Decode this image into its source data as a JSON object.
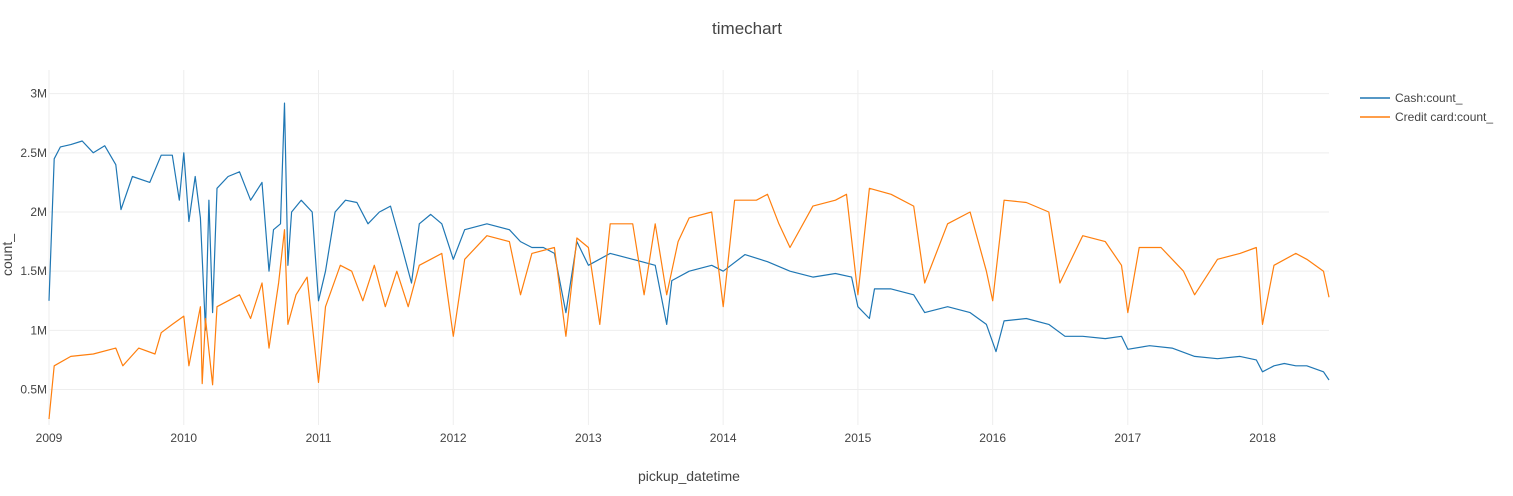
{
  "chart_data": {
    "type": "line",
    "title": "timechart",
    "xlabel": "pickup_datetime",
    "ylabel": "count_",
    "x_range": [
      "2009-01-01",
      "2018-06-30"
    ],
    "ylim": [
      200000,
      3200000
    ],
    "x_ticks": [
      "2009",
      "2010",
      "2011",
      "2012",
      "2013",
      "2014",
      "2015",
      "2016",
      "2017",
      "2018"
    ],
    "y_ticks": [
      {
        "value": 500000,
        "label": "0.5M"
      },
      {
        "value": 1000000,
        "label": "1M"
      },
      {
        "value": 1500000,
        "label": "1.5M"
      },
      {
        "value": 2000000,
        "label": "2M"
      },
      {
        "value": 2500000,
        "label": "2.5M"
      },
      {
        "value": 3000000,
        "label": "3M"
      }
    ],
    "grid": true,
    "legend_position": "top-right",
    "series": [
      {
        "name": "Cash:count_",
        "color": "#1f77b4",
        "points": [
          [
            "2009-01-01",
            1250000
          ],
          [
            "2009-01-15",
            2450000
          ],
          [
            "2009-02-01",
            2550000
          ],
          [
            "2009-03-01",
            2570000
          ],
          [
            "2009-04-01",
            2600000
          ],
          [
            "2009-05-01",
            2500000
          ],
          [
            "2009-06-01",
            2560000
          ],
          [
            "2009-07-01",
            2400000
          ],
          [
            "2009-07-15",
            2020000
          ],
          [
            "2009-08-15",
            2300000
          ],
          [
            "2009-10-01",
            2250000
          ],
          [
            "2009-11-01",
            2480000
          ],
          [
            "2009-12-01",
            2480000
          ],
          [
            "2009-12-20",
            2100000
          ],
          [
            "2010-01-01",
            2500000
          ],
          [
            "2010-01-15",
            1920000
          ],
          [
            "2010-02-01",
            2300000
          ],
          [
            "2010-02-15",
            1950000
          ],
          [
            "2010-03-01",
            1000000
          ],
          [
            "2010-03-10",
            2100000
          ],
          [
            "2010-03-20",
            1150000
          ],
          [
            "2010-04-01",
            2200000
          ],
          [
            "2010-05-01",
            2300000
          ],
          [
            "2010-06-01",
            2340000
          ],
          [
            "2010-07-01",
            2100000
          ],
          [
            "2010-08-01",
            2250000
          ],
          [
            "2010-08-20",
            1500000
          ],
          [
            "2010-09-01",
            1850000
          ],
          [
            "2010-09-20",
            1900000
          ],
          [
            "2010-10-01",
            2920000
          ],
          [
            "2010-10-10",
            1550000
          ],
          [
            "2010-10-20",
            2000000
          ],
          [
            "2010-11-15",
            2100000
          ],
          [
            "2010-12-15",
            2000000
          ],
          [
            "2011-01-01",
            1250000
          ],
          [
            "2011-01-20",
            1500000
          ],
          [
            "2011-02-15",
            2000000
          ],
          [
            "2011-03-15",
            2100000
          ],
          [
            "2011-04-15",
            2080000
          ],
          [
            "2011-05-15",
            1900000
          ],
          [
            "2011-06-15",
            2000000
          ],
          [
            "2011-07-15",
            2050000
          ],
          [
            "2011-08-15",
            1700000
          ],
          [
            "2011-09-10",
            1400000
          ],
          [
            "2011-10-01",
            1900000
          ],
          [
            "2011-11-01",
            1980000
          ],
          [
            "2011-12-01",
            1900000
          ],
          [
            "2012-01-01",
            1600000
          ],
          [
            "2012-02-01",
            1850000
          ],
          [
            "2012-04-01",
            1900000
          ],
          [
            "2012-06-01",
            1850000
          ],
          [
            "2012-07-01",
            1750000
          ],
          [
            "2012-08-01",
            1700000
          ],
          [
            "2012-09-01",
            1700000
          ],
          [
            "2012-10-01",
            1650000
          ],
          [
            "2012-11-01",
            1150000
          ],
          [
            "2012-12-01",
            1750000
          ],
          [
            "2013-01-01",
            1550000
          ],
          [
            "2013-03-01",
            1650000
          ],
          [
            "2013-05-01",
            1600000
          ],
          [
            "2013-07-01",
            1550000
          ],
          [
            "2013-08-01",
            1050000
          ],
          [
            "2013-08-15",
            1420000
          ],
          [
            "2013-10-01",
            1500000
          ],
          [
            "2013-12-01",
            1550000
          ],
          [
            "2014-01-01",
            1500000
          ],
          [
            "2014-03-01",
            1640000
          ],
          [
            "2014-05-01",
            1580000
          ],
          [
            "2014-07-01",
            1500000
          ],
          [
            "2014-09-01",
            1450000
          ],
          [
            "2014-11-01",
            1480000
          ],
          [
            "2014-12-15",
            1450000
          ],
          [
            "2015-01-01",
            1200000
          ],
          [
            "2015-02-01",
            1100000
          ],
          [
            "2015-02-15",
            1350000
          ],
          [
            "2015-04-01",
            1350000
          ],
          [
            "2015-06-01",
            1300000
          ],
          [
            "2015-07-01",
            1150000
          ],
          [
            "2015-09-01",
            1200000
          ],
          [
            "2015-11-01",
            1150000
          ],
          [
            "2015-12-15",
            1050000
          ],
          [
            "2016-01-10",
            820000
          ],
          [
            "2016-02-01",
            1080000
          ],
          [
            "2016-04-01",
            1100000
          ],
          [
            "2016-06-01",
            1050000
          ],
          [
            "2016-07-15",
            950000
          ],
          [
            "2016-09-01",
            950000
          ],
          [
            "2016-11-01",
            930000
          ],
          [
            "2016-12-15",
            950000
          ],
          [
            "2017-01-01",
            840000
          ],
          [
            "2017-03-01",
            870000
          ],
          [
            "2017-05-01",
            850000
          ],
          [
            "2017-07-01",
            780000
          ],
          [
            "2017-09-01",
            760000
          ],
          [
            "2017-11-01",
            780000
          ],
          [
            "2017-12-15",
            750000
          ],
          [
            "2018-01-01",
            650000
          ],
          [
            "2018-02-01",
            700000
          ],
          [
            "2018-03-01",
            720000
          ],
          [
            "2018-04-01",
            700000
          ],
          [
            "2018-05-01",
            700000
          ],
          [
            "2018-06-15",
            650000
          ],
          [
            "2018-06-30",
            580000
          ]
        ]
      },
      {
        "name": "Credit card:count_",
        "color": "#ff7f0e",
        "points": [
          [
            "2009-01-01",
            250000
          ],
          [
            "2009-01-15",
            700000
          ],
          [
            "2009-03-01",
            780000
          ],
          [
            "2009-05-01",
            800000
          ],
          [
            "2009-07-01",
            850000
          ],
          [
            "2009-07-20",
            700000
          ],
          [
            "2009-09-01",
            850000
          ],
          [
            "2009-10-15",
            800000
          ],
          [
            "2009-11-01",
            980000
          ],
          [
            "2009-12-01",
            1050000
          ],
          [
            "2010-01-01",
            1120000
          ],
          [
            "2010-01-15",
            700000
          ],
          [
            "2010-02-15",
            1200000
          ],
          [
            "2010-02-20",
            550000
          ],
          [
            "2010-03-01",
            1100000
          ],
          [
            "2010-03-20",
            540000
          ],
          [
            "2010-04-01",
            1200000
          ],
          [
            "2010-05-01",
            1250000
          ],
          [
            "2010-06-01",
            1300000
          ],
          [
            "2010-07-01",
            1100000
          ],
          [
            "2010-08-01",
            1400000
          ],
          [
            "2010-08-20",
            850000
          ],
          [
            "2010-09-15",
            1400000
          ],
          [
            "2010-10-01",
            1850000
          ],
          [
            "2010-10-10",
            1050000
          ],
          [
            "2010-11-01",
            1300000
          ],
          [
            "2010-12-01",
            1450000
          ],
          [
            "2011-01-01",
            560000
          ],
          [
            "2011-01-20",
            1200000
          ],
          [
            "2011-03-01",
            1550000
          ],
          [
            "2011-04-01",
            1500000
          ],
          [
            "2011-05-01",
            1250000
          ],
          [
            "2011-06-01",
            1550000
          ],
          [
            "2011-07-01",
            1200000
          ],
          [
            "2011-08-01",
            1500000
          ],
          [
            "2011-09-01",
            1200000
          ],
          [
            "2011-10-01",
            1550000
          ],
          [
            "2011-11-01",
            1600000
          ],
          [
            "2011-12-01",
            1650000
          ],
          [
            "2012-01-01",
            950000
          ],
          [
            "2012-02-01",
            1600000
          ],
          [
            "2012-04-01",
            1800000
          ],
          [
            "2012-06-01",
            1750000
          ],
          [
            "2012-07-01",
            1300000
          ],
          [
            "2012-08-01",
            1650000
          ],
          [
            "2012-10-01",
            1700000
          ],
          [
            "2012-11-01",
            950000
          ],
          [
            "2012-12-01",
            1780000
          ],
          [
            "2013-01-01",
            1700000
          ],
          [
            "2013-02-01",
            1050000
          ],
          [
            "2013-03-01",
            1900000
          ],
          [
            "2013-05-01",
            1900000
          ],
          [
            "2013-06-01",
            1300000
          ],
          [
            "2013-07-01",
            1900000
          ],
          [
            "2013-08-01",
            1300000
          ],
          [
            "2013-09-01",
            1750000
          ],
          [
            "2013-10-01",
            1950000
          ],
          [
            "2013-12-01",
            2000000
          ],
          [
            "2014-01-01",
            1200000
          ],
          [
            "2014-02-01",
            2100000
          ],
          [
            "2014-04-01",
            2100000
          ],
          [
            "2014-05-01",
            2150000
          ],
          [
            "2014-06-01",
            1900000
          ],
          [
            "2014-07-01",
            1700000
          ],
          [
            "2014-09-01",
            2050000
          ],
          [
            "2014-11-01",
            2100000
          ],
          [
            "2014-12-01",
            2150000
          ],
          [
            "2015-01-01",
            1300000
          ],
          [
            "2015-02-01",
            2200000
          ],
          [
            "2015-04-01",
            2150000
          ],
          [
            "2015-06-01",
            2050000
          ],
          [
            "2015-07-01",
            1400000
          ],
          [
            "2015-09-01",
            1900000
          ],
          [
            "2015-11-01",
            2000000
          ],
          [
            "2015-12-15",
            1500000
          ],
          [
            "2016-01-01",
            1250000
          ],
          [
            "2016-02-01",
            2100000
          ],
          [
            "2016-04-01",
            2080000
          ],
          [
            "2016-06-01",
            2000000
          ],
          [
            "2016-07-01",
            1400000
          ],
          [
            "2016-09-01",
            1800000
          ],
          [
            "2016-11-01",
            1750000
          ],
          [
            "2016-12-15",
            1550000
          ],
          [
            "2017-01-01",
            1150000
          ],
          [
            "2017-02-01",
            1700000
          ],
          [
            "2017-04-01",
            1700000
          ],
          [
            "2017-06-01",
            1500000
          ],
          [
            "2017-07-01",
            1300000
          ],
          [
            "2017-09-01",
            1600000
          ],
          [
            "2017-11-01",
            1650000
          ],
          [
            "2017-12-15",
            1700000
          ],
          [
            "2018-01-01",
            1050000
          ],
          [
            "2018-02-01",
            1550000
          ],
          [
            "2018-04-01",
            1650000
          ],
          [
            "2018-05-01",
            1600000
          ],
          [
            "2018-06-15",
            1500000
          ],
          [
            "2018-06-30",
            1280000
          ]
        ]
      }
    ]
  }
}
